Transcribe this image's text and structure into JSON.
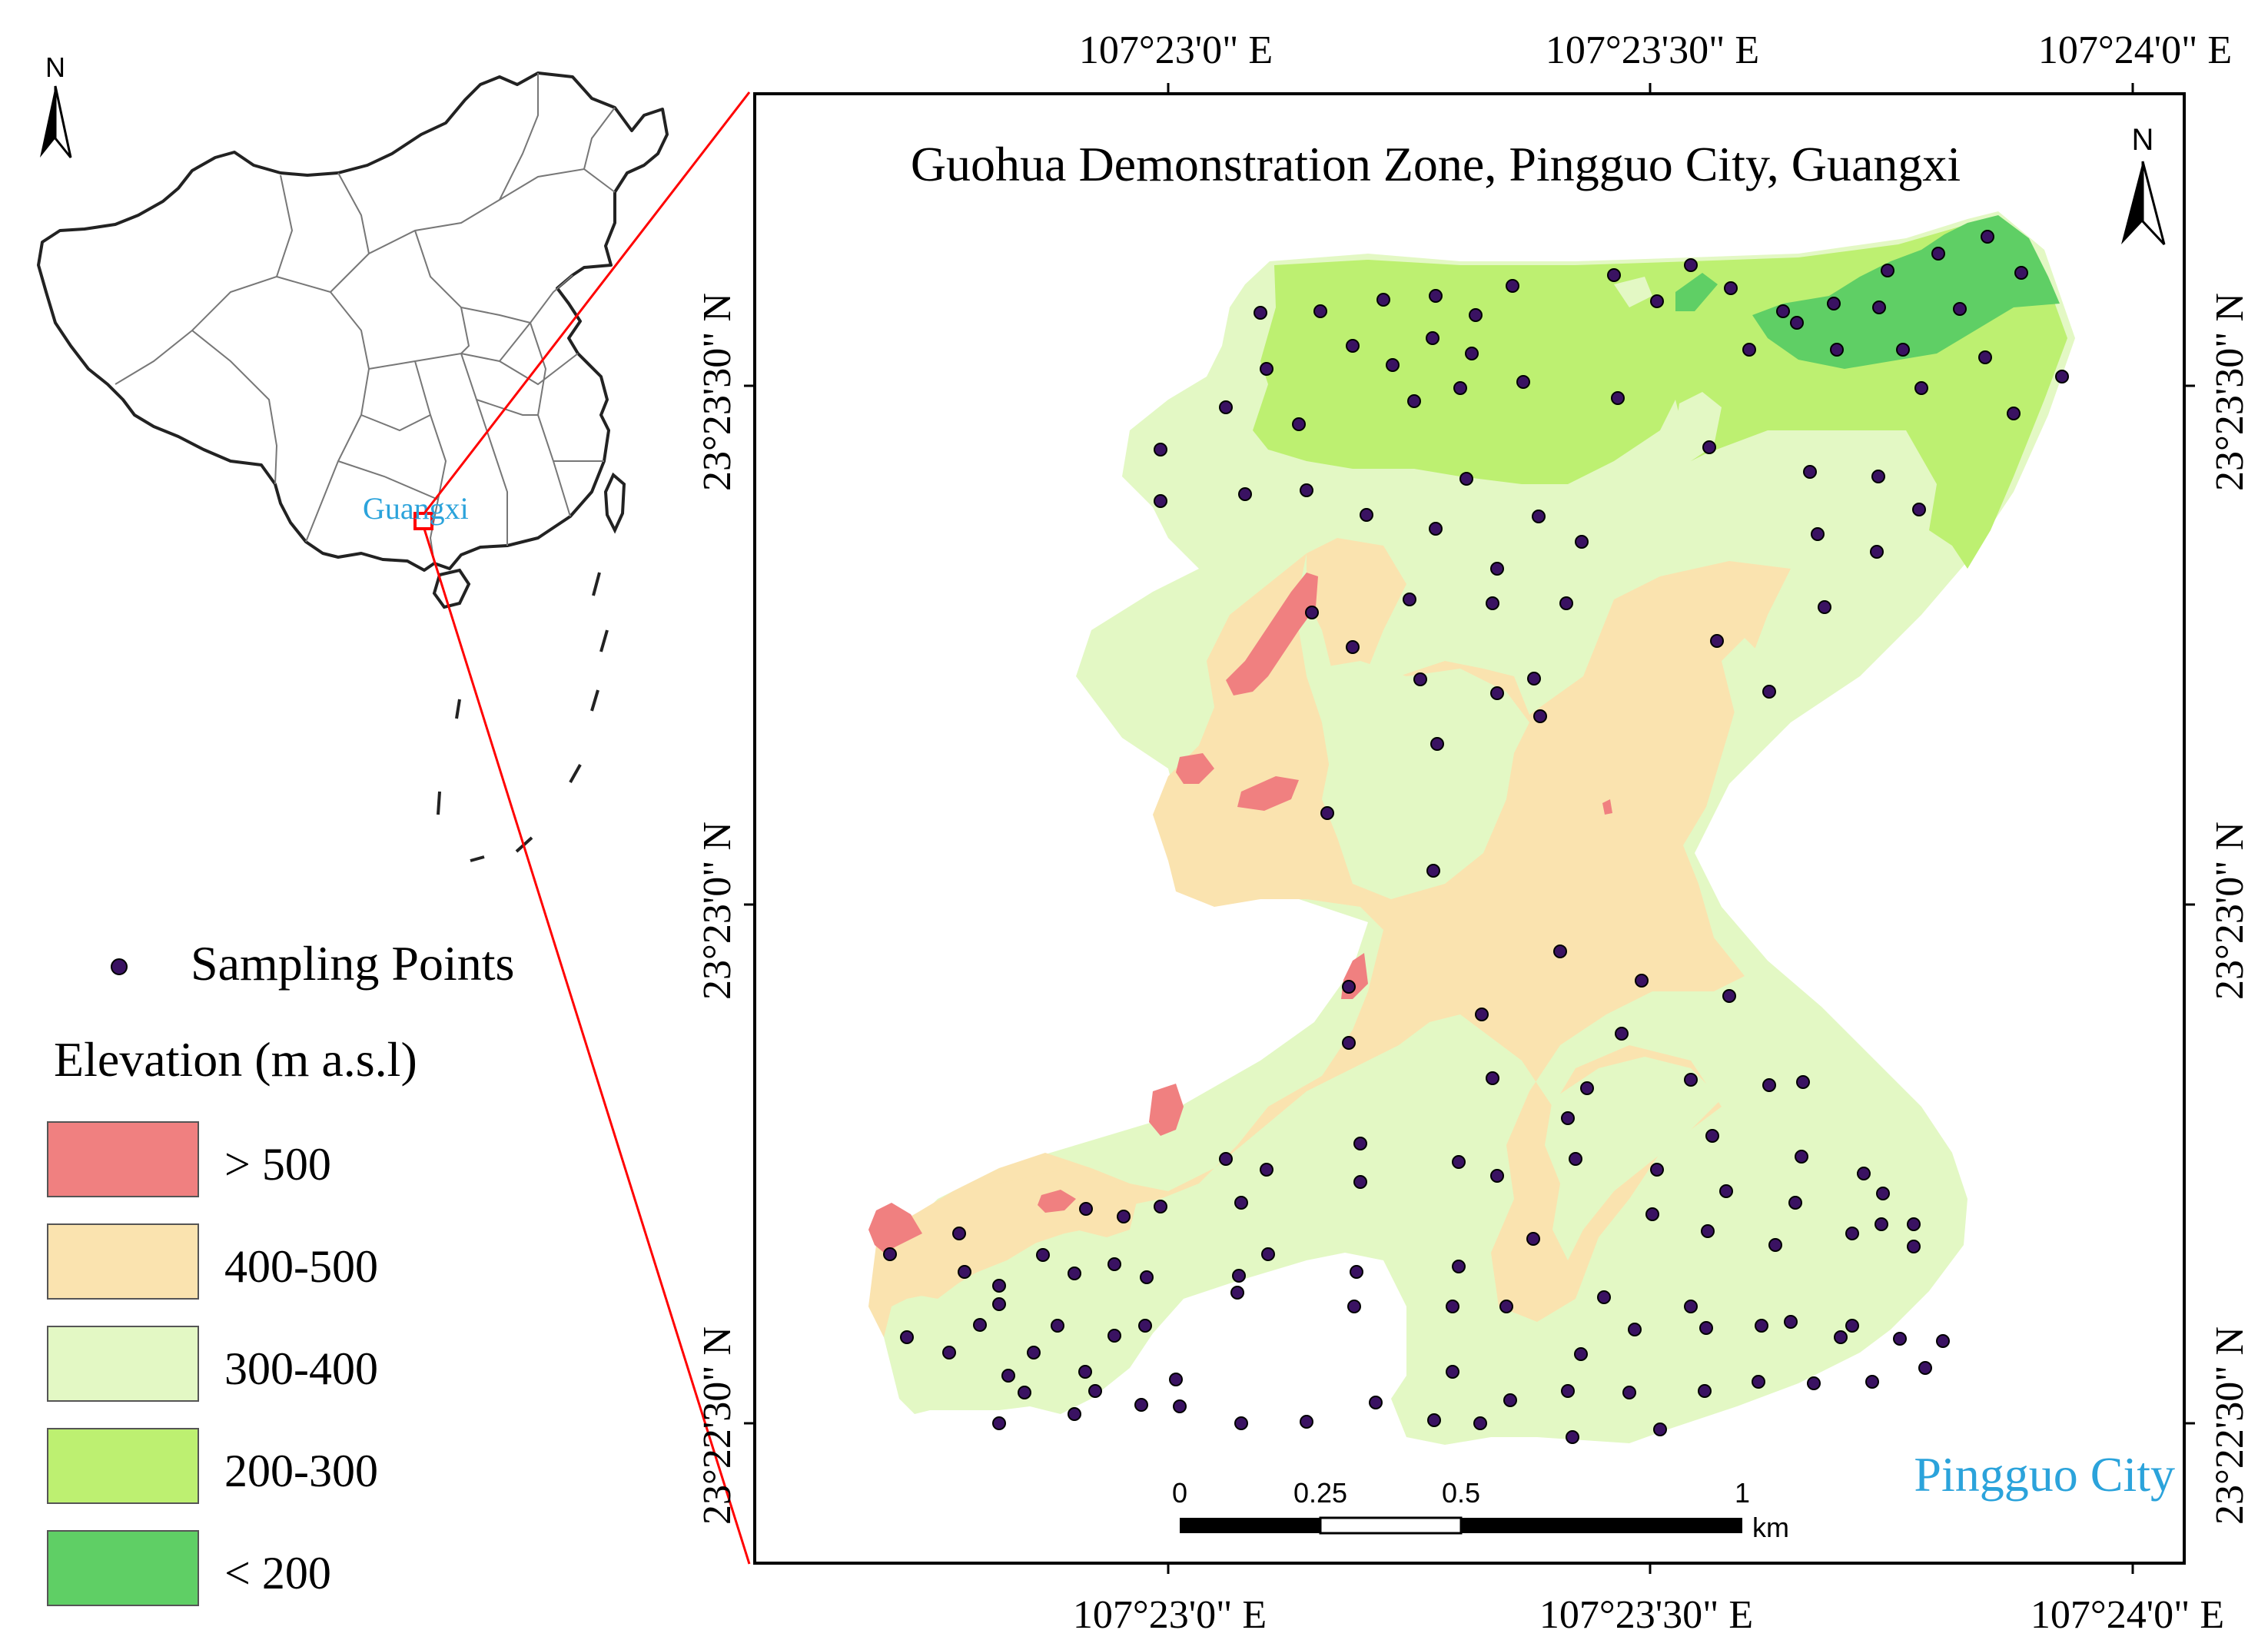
{
  "map_title": "Guohua Demonstration Zone, Pingguo City, Guangxi",
  "inset": {
    "north_label": "N",
    "region_label": "Guangxi"
  },
  "main": {
    "north_label": "N",
    "city_label": "Pingguo City",
    "lon_ticks_top": [
      "107°23'0\" E",
      "107°23'30\" E",
      "107°24'0\" E"
    ],
    "lon_ticks_bottom": [
      "107°23'0\" E",
      "107°23'30\" E",
      "107°24'0\" E"
    ],
    "lat_ticks_left": [
      "23°23'30\" N",
      "23°23'0\" N",
      "23°22'30\" N"
    ],
    "lat_ticks_right": [
      "23°23'30\" N",
      "23°23'0\" N",
      "23°22'30\" N"
    ],
    "scale_bar": {
      "labels": [
        "0",
        "0.25",
        "0.5",
        "1"
      ],
      "unit": "km"
    }
  },
  "legend": {
    "points_label": "Sampling Points",
    "elevation_title": "Elevation (m a.s.l)",
    "classes": [
      {
        "label": "> 500",
        "color": "#F08080"
      },
      {
        "label": "400-500",
        "color": "#FAE3AF"
      },
      {
        "label": "300-400",
        "color": "#E3F8C4"
      },
      {
        "label": "200-300",
        "color": "#BDF071"
      },
      {
        "label": "< 200",
        "color": "#5FCF65"
      }
    ],
    "point_color": "#3A1262"
  },
  "colors": {
    "frame": "#000000",
    "leader_line": "#FF0000",
    "label_blue": "#2BA3DB"
  }
}
